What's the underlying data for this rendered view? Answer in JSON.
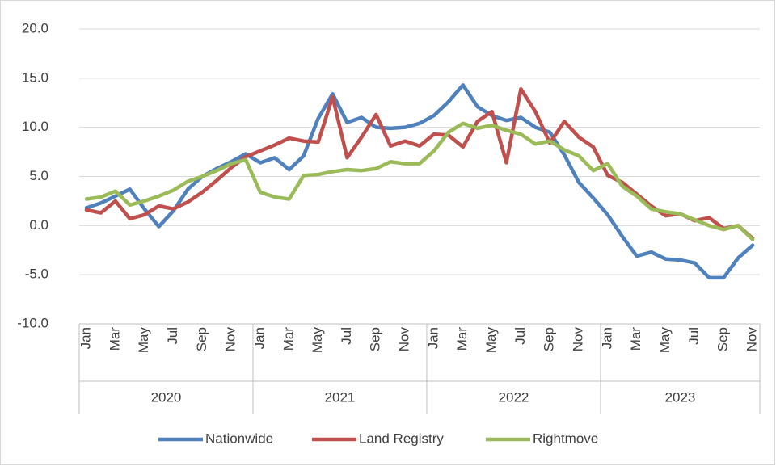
{
  "chart_data": {
    "type": "line",
    "categories": [
      "Jan",
      null,
      "Mar",
      null,
      "May",
      null,
      "Jul",
      null,
      "Sep",
      null,
      "Nov",
      null,
      "Jan",
      null,
      "Mar",
      null,
      "May",
      null,
      "Jul",
      null,
      "Sep",
      null,
      "Nov",
      null,
      "Jan",
      null,
      "Mar",
      null,
      "May",
      null,
      "Jul",
      null,
      "Sep",
      null,
      "Nov",
      null,
      "Jan",
      null,
      "Mar",
      null,
      "May",
      null,
      "Jul",
      null,
      "Sep",
      null,
      "Nov"
    ],
    "groups": [
      "2020",
      "2021",
      "2022",
      "2023"
    ],
    "series": [
      {
        "name": "Nationwide",
        "color": "#4f81bd",
        "values": [
          1.8,
          2.3,
          3.0,
          3.7,
          1.7,
          -0.1,
          1.5,
          3.7,
          5.0,
          5.8,
          6.5,
          7.3,
          6.4,
          6.9,
          5.7,
          7.1,
          10.9,
          13.4,
          10.5,
          11.0,
          10.0,
          9.9,
          10.0,
          10.4,
          11.2,
          12.6,
          14.3,
          12.1,
          11.2,
          10.7,
          11.0,
          10.0,
          9.5,
          7.2,
          4.4,
          2.8,
          1.1,
          -1.1,
          -3.1,
          -2.7,
          -3.4,
          -3.5,
          -3.8,
          -5.3,
          -5.3,
          -3.3,
          -2.0
        ]
      },
      {
        "name": "Land Registry",
        "color": "#c0504d",
        "values": [
          1.6,
          1.3,
          2.5,
          0.7,
          1.1,
          2.0,
          1.7,
          2.4,
          3.4,
          4.6,
          5.9,
          7.0,
          7.6,
          8.2,
          8.9,
          8.6,
          8.5,
          13.1,
          6.9,
          9.0,
          11.3,
          8.1,
          8.6,
          8.1,
          9.3,
          9.2,
          8.0,
          10.6,
          11.6,
          6.4,
          13.9,
          11.6,
          8.4,
          10.6,
          9.0,
          8.0,
          5.1,
          4.4,
          3.2,
          2.0,
          1.0,
          1.2,
          0.5,
          0.8,
          -0.3,
          0.0,
          -1.3
        ]
      },
      {
        "name": "Rightmove",
        "color": "#9bbb59",
        "values": [
          2.7,
          2.9,
          3.5,
          2.1,
          2.5,
          3.0,
          3.6,
          4.5,
          5.0,
          5.6,
          6.3,
          6.7,
          3.4,
          2.9,
          2.7,
          5.1,
          5.2,
          5.5,
          5.7,
          5.6,
          5.8,
          6.5,
          6.3,
          6.3,
          7.6,
          9.5,
          10.4,
          9.9,
          10.2,
          9.7,
          9.3,
          8.3,
          8.6,
          7.7,
          7.1,
          5.6,
          6.3,
          4.0,
          3.0,
          1.7,
          1.4,
          1.2,
          0.6,
          0.0,
          -0.4,
          0.0,
          -1.4
        ]
      }
    ],
    "ylim": [
      -10,
      20
    ],
    "yticks": [
      {
        "value": -10,
        "label": "-10.0"
      },
      {
        "value": -5,
        "label": "-5.0"
      },
      {
        "value": 0,
        "label": "0.0"
      },
      {
        "value": 5,
        "label": "5.0"
      },
      {
        "value": 10,
        "label": "10.0"
      },
      {
        "value": 15,
        "label": "15.0"
      },
      {
        "value": 20,
        "label": "20.0"
      }
    ],
    "grid": true,
    "legend": "bottom"
  }
}
